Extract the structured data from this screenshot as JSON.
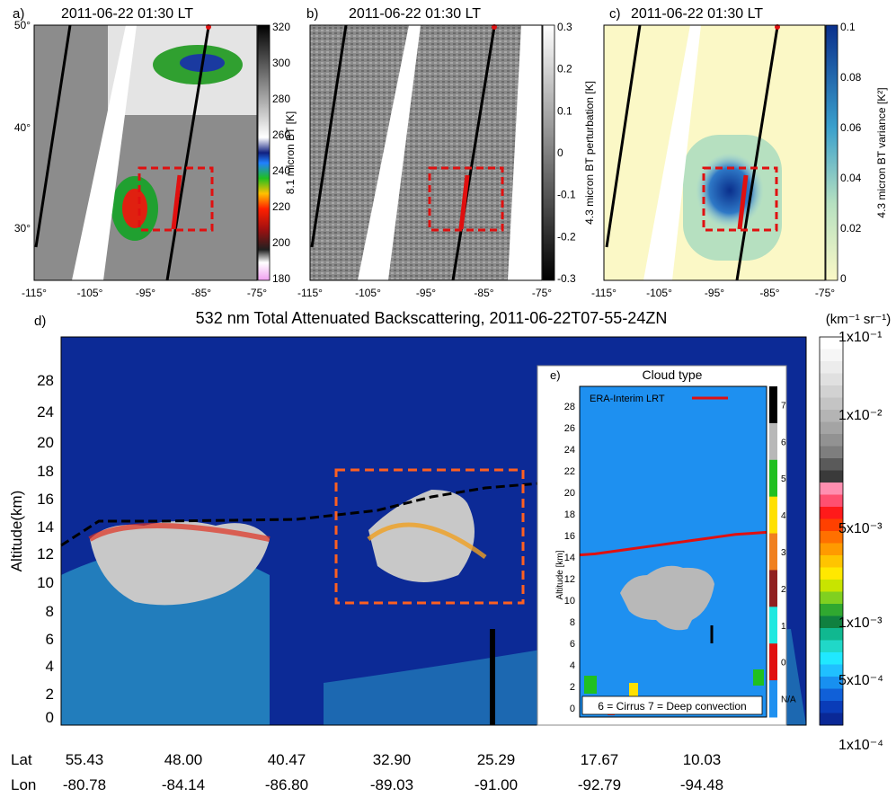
{
  "chart_data": [
    {
      "panel": "a)",
      "type": "heatmap",
      "title": "2011-06-22 01:30 LT",
      "colorbar_label": "8.1 micron BT [K]",
      "colorbar_ticks": [
        "320",
        "300",
        "280",
        "260",
        "240",
        "220",
        "200",
        "180"
      ],
      "colorbar_range": [
        180,
        320
      ],
      "lat_ticks": [
        "50°",
        "40°",
        "30°"
      ],
      "lon_ticks": [
        "-115°",
        "-105°",
        "-95°",
        "-85°",
        "-75°"
      ]
    },
    {
      "panel": "b)",
      "type": "heatmap",
      "title": "2011-06-22 01:30 LT",
      "colorbar_label": "4.3 micron BT perturbation [K]",
      "colorbar_ticks": [
        "0.3",
        "0.2",
        "0.1",
        "0",
        "-0.1",
        "-0.2",
        "-0.3"
      ],
      "colorbar_range": [
        -0.3,
        0.3
      ],
      "lon_ticks": [
        "-115°",
        "-105°",
        "-95°",
        "-85°",
        "-75°"
      ]
    },
    {
      "panel": "c)",
      "type": "heatmap",
      "title": "2011-06-22 01:30 LT",
      "colorbar_label": "4.3 micron BT variance [K²]",
      "colorbar_ticks": [
        "0.1",
        "0.08",
        "0.06",
        "0.04",
        "0.02",
        "0"
      ],
      "colorbar_range": [
        0,
        0.1
      ],
      "lon_ticks": [
        "-115°",
        "-105°",
        "-95°",
        "-85°",
        "-75°"
      ]
    },
    {
      "panel": "d)",
      "type": "heatmap",
      "title": "532 nm Total Attenuated Backscattering, 2011-06-22T07-55-24ZN",
      "ylabel": "Altitude(km)",
      "yticks": [
        0,
        2,
        4,
        6,
        8,
        10,
        12,
        14,
        16,
        18,
        20,
        24,
        28
      ],
      "colorbar_unit": "(km⁻¹ sr⁻¹)",
      "colorbar_ticks": [
        "1x10⁻¹",
        "1x10⁻²",
        "5x10⁻³",
        "1x10⁻³",
        "5x10⁻⁴",
        "1x10⁻⁴"
      ],
      "x_rows": [
        {
          "label": "Lat",
          "values": [
            "55.43",
            "48.00",
            "40.47",
            "32.90",
            "25.29",
            "17.67",
            "10.03"
          ]
        },
        {
          "label": "Lon",
          "values": [
            "-80.78",
            "-84.14",
            "-86.80",
            "-89.03",
            "-91.00",
            "-92.79",
            "-94.48"
          ]
        }
      ]
    },
    {
      "panel": "e)",
      "type": "heatmap",
      "title": "Cloud type",
      "ylabel": "Altitude [km]",
      "yticks": [
        0,
        2,
        4,
        6,
        8,
        10,
        12,
        14,
        16,
        18,
        20,
        22,
        24,
        26,
        28
      ],
      "legend": "ERA-Interim LRT",
      "colorbar_ticks": [
        "7",
        "6",
        "5",
        "4",
        "3",
        "2",
        "1",
        "0",
        "N/A"
      ],
      "note": "6 = Cirrus   7 = Deep convection",
      "lrt_km": [
        14.2,
        14.3,
        14.5,
        14.7,
        14.9,
        15.1,
        15.3,
        15.5,
        15.7,
        15.9,
        16.1,
        16.2,
        16.3
      ]
    }
  ]
}
